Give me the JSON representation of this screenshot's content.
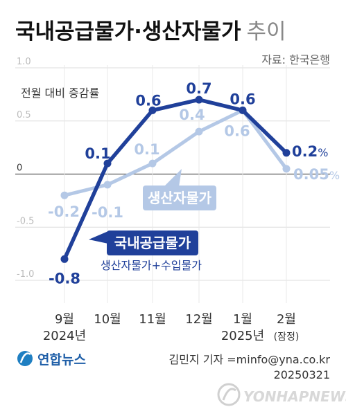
{
  "header": {
    "title": "국내공급물가·생산자물가",
    "title_suffix": "추이",
    "source": "자료: 한국은행"
  },
  "chart_data": {
    "type": "line",
    "ylabel": "전월 대비 증감률",
    "ylim": [
      -1.0,
      1.0
    ],
    "yticks": [
      {
        "value": 1.0,
        "label": "1.0"
      },
      {
        "value": 0.5,
        "label": "0.5"
      },
      {
        "value": 0,
        "label": "0"
      },
      {
        "value": -0.5,
        "label": "-0.5"
      },
      {
        "value": -1.0,
        "label": "-1.0"
      }
    ],
    "categories": [
      {
        "month": "9월",
        "year": "2024년"
      },
      {
        "month": "10월",
        "year": ""
      },
      {
        "month": "11월",
        "year": ""
      },
      {
        "month": "12월",
        "year": ""
      },
      {
        "month": "1월",
        "year": "2025년"
      },
      {
        "month": "2월",
        "year": "(잠정)"
      }
    ],
    "series": [
      {
        "name": "생산자물가",
        "color": "#b4c8e6",
        "values": [
          -0.2,
          -0.1,
          0.1,
          0.4,
          0.6,
          0.05
        ],
        "labels": [
          "-0.2",
          "-0.1",
          "0.1",
          "0.4",
          "0.6",
          "0.05"
        ],
        "label_unit": "%"
      },
      {
        "name": "국내공급물가",
        "subtitle": "생산자물가+수입물가",
        "color": "#20409a",
        "values": [
          -0.8,
          0.1,
          0.6,
          0.7,
          0.6,
          0.2
        ],
        "labels": [
          "-0.8",
          "0.1",
          "0.6",
          "0.7",
          "0.6",
          "0.2"
        ],
        "label_unit": "%"
      }
    ]
  },
  "footer": {
    "logo": "연합뉴스",
    "credit": "김민지 기자 =minfo@yna.co.kr",
    "date": "20250321",
    "watermark": "YONHAPNEWS"
  }
}
